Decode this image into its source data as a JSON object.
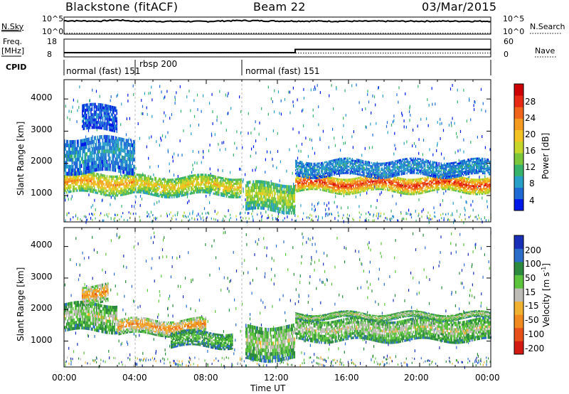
{
  "header": {
    "station": "Blackstone (fitACF)",
    "beam": "Beam 22",
    "date": "03/Mar/2015"
  },
  "top_panels": {
    "nsky_label": "N.Sky",
    "nsearch_label": "N.Search",
    "freq_label": "Freq.",
    "freq_unit": "[MHz]",
    "nave_label": "Nave",
    "cpid_label": "CPID",
    "noise_ticks": [
      "10^5",
      "10^0"
    ],
    "freq_ticks": [
      "18",
      "8"
    ],
    "nave_ticks": [
      "60",
      "0"
    ]
  },
  "cpid_segments": [
    {
      "label": "normal (fast) 151",
      "start_h": 0,
      "end_h": 4.0
    },
    {
      "label": "rbsp 200",
      "start_h": 4.0,
      "end_h": 10.0
    },
    {
      "label": "normal (fast) 151",
      "start_h": 10.0,
      "end_h": 24.0
    }
  ],
  "colorbars": {
    "power": {
      "title": "Power [dB]",
      "ticks": [
        "4",
        "8",
        "12",
        "16",
        "20",
        "24",
        "28"
      ],
      "colors": [
        "#0018e8",
        "#1f6bd6",
        "#29a0c8",
        "#37b36c",
        "#7cc63c",
        "#c7d62a",
        "#f2c322",
        "#f59a20",
        "#f0641c",
        "#e82a14",
        "#cc0000"
      ]
    },
    "velocity": {
      "title": "Velocity [m s",
      "title_sup": "-1",
      "title_end": "]",
      "ticks": [
        "200",
        "100",
        "50",
        "15",
        "-15",
        "-50",
        "-100",
        "-200"
      ],
      "colors": [
        "#1a2fb8",
        "#2c6dc9",
        "#2b8a3e",
        "#5cc43c",
        "#bdbdb5",
        "#f0b030",
        "#f08a1e",
        "#e8501a",
        "#d21a12"
      ]
    }
  },
  "chart_data": [
    {
      "type": "line",
      "title": "N.Sky / N.Search",
      "x_range_hours": [
        0,
        24
      ],
      "y_scale": "log",
      "y_ticks": [
        "10^5",
        "10^0"
      ],
      "series": [
        {
          "name": "N.Sky",
          "x": [
            0,
            1,
            2,
            3,
            4,
            6,
            8,
            10,
            12,
            13,
            16,
            20,
            24
          ],
          "values": [
            25000,
            22000,
            20000,
            40000,
            18000,
            16000,
            15000,
            30000,
            20000,
            20000,
            17000,
            18000,
            18000
          ]
        },
        {
          "name": "N.Search",
          "x": [
            0,
            2,
            4,
            8,
            12,
            16,
            20,
            24
          ],
          "values": [
            2,
            2,
            2,
            2,
            2,
            2,
            2,
            2
          ]
        }
      ]
    },
    {
      "type": "line",
      "title": "Freq. / Nave",
      "x_range_hours": [
        0,
        24
      ],
      "freq_ylim": [
        8,
        18
      ],
      "nave_ylim": [
        0,
        60
      ],
      "series": [
        {
          "name": "Freq. [MHz]",
          "x": [
            0,
            13,
            13,
            24
          ],
          "values": [
            10.4,
            10.4,
            12.2,
            12.2
          ]
        },
        {
          "name": "Nave",
          "x": [
            0,
            24
          ],
          "values": [
            13,
            13
          ]
        }
      ]
    },
    {
      "type": "heatmap",
      "title": "Power",
      "xlabel": "",
      "ylabel": "Slant Range [km]",
      "x_range_hours": [
        0,
        24
      ],
      "ylim": [
        180,
        4600
      ],
      "y_ticks": [
        1000,
        2000,
        3000,
        4000
      ],
      "value_label": "Power [dB]",
      "bands": [
        {
          "t0": 0,
          "t1": 4,
          "r0": 1050,
          "r1": 1700,
          "level": 7
        },
        {
          "t0": 4,
          "t1": 10,
          "r0": 1000,
          "r1": 1600,
          "level": 6
        },
        {
          "t0": 10.2,
          "t1": 13,
          "r0": 500,
          "r1": 1400,
          "level": 5
        },
        {
          "t0": 13,
          "t1": 24,
          "r0": 1100,
          "r1": 1600,
          "level": 9
        },
        {
          "t0": 0,
          "t1": 4,
          "r0": 1700,
          "r1": 2800,
          "level": 2
        },
        {
          "t0": 1,
          "t1": 3,
          "r0": 3000,
          "r1": 3800,
          "level": 1
        },
        {
          "t0": 13,
          "t1": 24,
          "r0": 1600,
          "r1": 2100,
          "level": 2
        }
      ]
    },
    {
      "type": "heatmap",
      "title": "Velocity",
      "xlabel": "Time UT",
      "ylabel": "Slant Range [km]",
      "x_range_hours": [
        0,
        24
      ],
      "x_ticks": [
        "00:00",
        "04:00",
        "08:00",
        "12:00",
        "16:00",
        "20:00",
        "00:00"
      ],
      "ylim": [
        180,
        4600
      ],
      "y_ticks": [
        1000,
        2000,
        3000,
        4000
      ],
      "value_label": "Velocity [m s-1]",
      "bands": [
        {
          "t0": 0,
          "t1": 3,
          "r0": 1300,
          "r1": 2200,
          "level": 4
        },
        {
          "t0": 3,
          "t1": 8,
          "r0": 1200,
          "r1": 1700,
          "level": 6
        },
        {
          "t0": 6,
          "t1": 9.5,
          "r0": 800,
          "r1": 1300,
          "level": 3
        },
        {
          "t0": 1,
          "t1": 2.5,
          "r0": 2200,
          "r1": 2800,
          "level": 6
        },
        {
          "t0": 10.2,
          "t1": 13,
          "r0": 400,
          "r1": 1500,
          "level": 4
        },
        {
          "t0": 13,
          "t1": 24,
          "r0": 1000,
          "r1": 1700,
          "level": 4
        },
        {
          "t0": 13,
          "t1": 24,
          "r0": 1700,
          "r1": 1900,
          "level": 4
        }
      ]
    }
  ]
}
